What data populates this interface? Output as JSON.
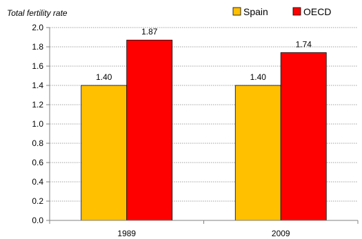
{
  "chart_data": {
    "type": "bar",
    "ylabel": "Total fertility rate",
    "categories": [
      "1989",
      "2009"
    ],
    "series": [
      {
        "name": "Spain",
        "values": [
          1.4,
          1.4
        ],
        "labels": [
          "1.40",
          "1.40"
        ],
        "color": "#FFC000"
      },
      {
        "name": "OECD",
        "values": [
          1.87,
          1.74
        ],
        "labels": [
          "1.87",
          "1.74"
        ],
        "color": "#FF0000"
      }
    ],
    "ylim": [
      0,
      2.0
    ],
    "yticks": [
      "0.0",
      "0.2",
      "0.4",
      "0.6",
      "0.8",
      "1.0",
      "1.2",
      "1.4",
      "1.6",
      "1.8",
      "2.0"
    ],
    "grid": true,
    "legend": "top-right"
  }
}
